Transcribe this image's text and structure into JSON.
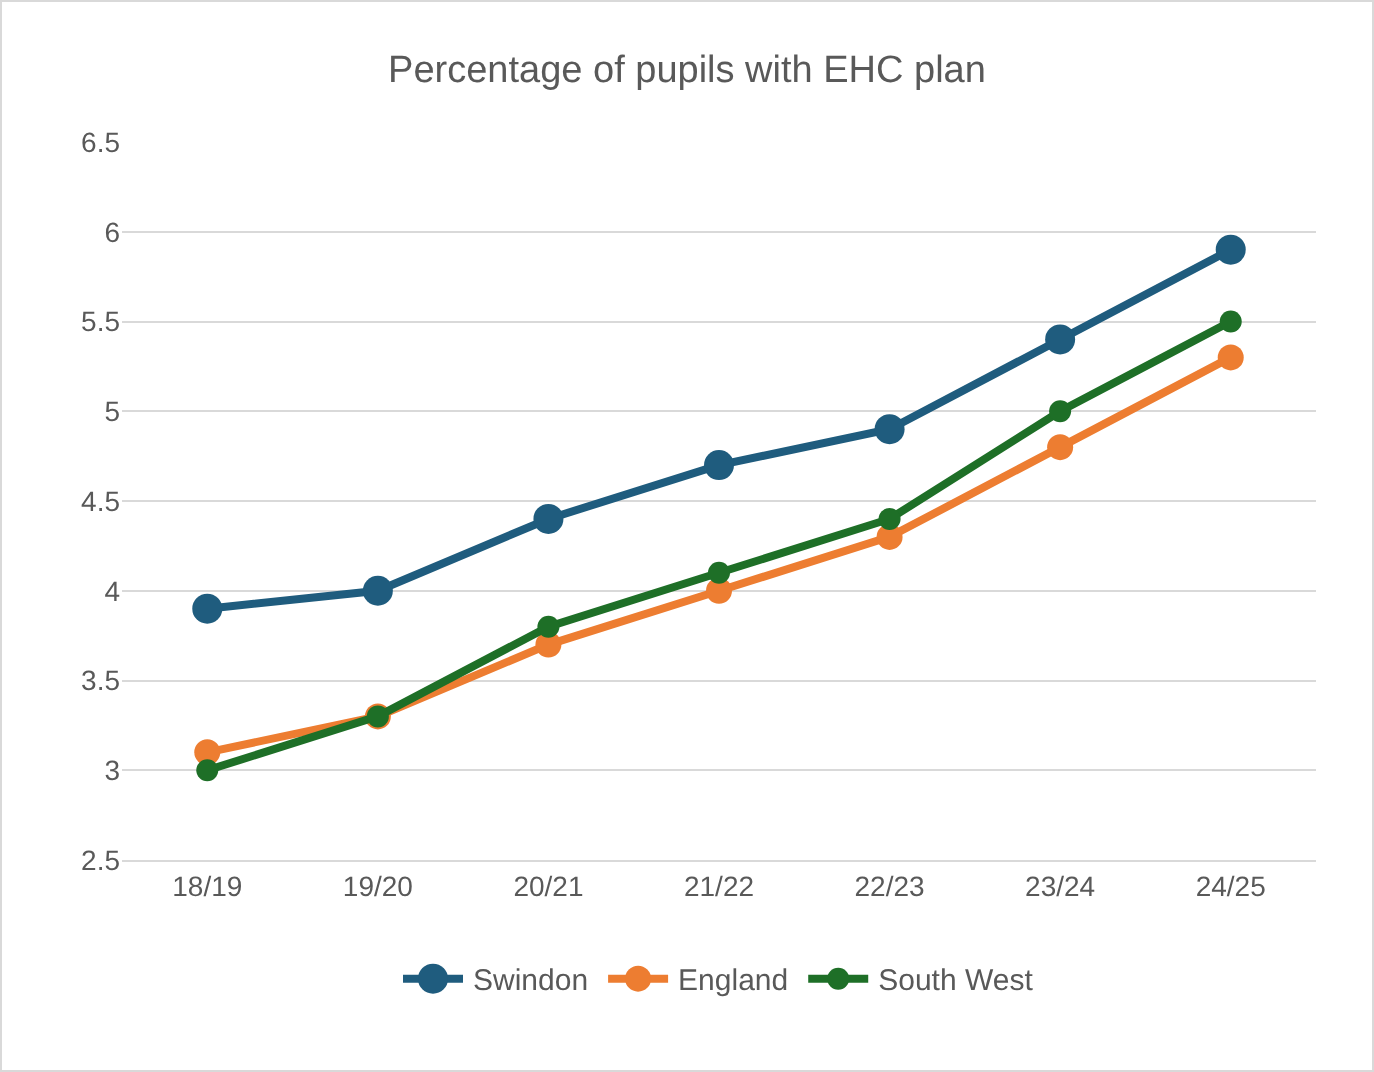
{
  "chart_data": {
    "type": "line",
    "title": "Percentage of pupils with EHC plan",
    "categories": [
      "18/19",
      "19/20",
      "20/21",
      "21/22",
      "22/23",
      "23/24",
      "24/25"
    ],
    "series": [
      {
        "name": "Swindon",
        "color": "#1f5c7e",
        "values": [
          3.9,
          4.0,
          4.4,
          4.7,
          4.9,
          5.4,
          5.9
        ]
      },
      {
        "name": "England",
        "color": "#ed7d31",
        "values": [
          3.1,
          3.3,
          3.7,
          4.0,
          4.3,
          4.8,
          5.3
        ]
      },
      {
        "name": "South West",
        "color": "#1e6f27",
        "values": [
          3.0,
          3.3,
          3.8,
          4.1,
          4.4,
          5.0,
          5.5
        ]
      }
    ],
    "ylim": [
      2.5,
      6.5
    ],
    "yticks": [
      2.5,
      3,
      3.5,
      4,
      4.5,
      5,
      5.5,
      6,
      6.5
    ],
    "grid": "y",
    "legend": "bottom",
    "marker": "circle",
    "line_style": "solid"
  }
}
